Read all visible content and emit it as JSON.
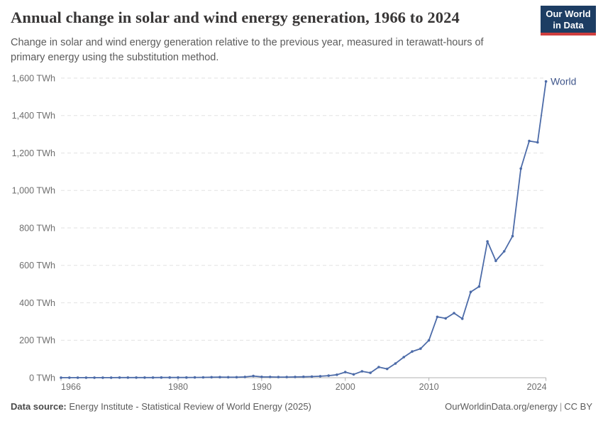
{
  "header": {
    "title": "Annual change in solar and wind energy generation, 1966 to 2024",
    "subtitle": "Change in solar and wind energy generation relative to the previous year, measured in terawatt-hours of primary energy using the substitution method.",
    "logo": {
      "line1": "Our World",
      "line2": "in Data"
    }
  },
  "footer": {
    "data_source_label": "Data source:",
    "data_source_value": " Energy Institute - Statistical Review of World Energy (2025)",
    "url": "OurWorldinData.org/energy",
    "divider": "|",
    "license": "CC BY"
  },
  "chart_data": {
    "type": "line",
    "title": "Annual change in solar and wind energy generation, 1966 to 2024",
    "unit": "TWh",
    "grid": "horizontal-dashed",
    "legend_position": "end-of-line-label",
    "xlim": [
      1966,
      2024
    ],
    "ylim": [
      0,
      1600
    ],
    "x": [
      1966,
      1967,
      1968,
      1969,
      1970,
      1971,
      1972,
      1973,
      1974,
      1975,
      1976,
      1977,
      1978,
      1979,
      1980,
      1981,
      1982,
      1983,
      1984,
      1985,
      1986,
      1987,
      1988,
      1989,
      1990,
      1991,
      1992,
      1993,
      1994,
      1995,
      1996,
      1997,
      1998,
      1999,
      2000,
      2001,
      2002,
      2003,
      2004,
      2005,
      2006,
      2007,
      2008,
      2009,
      2010,
      2011,
      2012,
      2013,
      2014,
      2015,
      2016,
      2017,
      2018,
      2019,
      2020,
      2021,
      2022,
      2023,
      2024
    ],
    "series": [
      {
        "name": "World",
        "values": [
          0.3,
          0.3,
          0.3,
          0.4,
          0.4,
          0.5,
          0.5,
          0.6,
          0.6,
          0.7,
          0.8,
          0.9,
          1,
          1.1,
          1.2,
          1.3,
          1.6,
          2,
          2.5,
          3,
          2.8,
          2.8,
          4,
          9,
          4.5,
          4,
          3.5,
          3.5,
          4,
          5,
          6,
          8,
          11,
          16,
          30,
          18,
          34,
          26,
          57,
          47,
          76,
          110,
          140,
          155,
          200,
          325,
          317,
          345,
          315,
          458,
          487,
          728,
          624,
          675,
          756,
          1117,
          1264,
          1257,
          1582
        ]
      }
    ],
    "y_ticks": [
      {
        "value": 0,
        "label": "0 TWh"
      },
      {
        "value": 200,
        "label": "200 TWh"
      },
      {
        "value": 400,
        "label": "400 TWh"
      },
      {
        "value": 600,
        "label": "600 TWh"
      },
      {
        "value": 800,
        "label": "800 TWh"
      },
      {
        "value": 1000,
        "label": "1,000 TWh"
      },
      {
        "value": 1200,
        "label": "1,200 TWh"
      },
      {
        "value": 1400,
        "label": "1,400 TWh"
      },
      {
        "value": 1600,
        "label": "1,600 TWh"
      }
    ],
    "x_ticks": [
      {
        "value": 1966,
        "label": "1966"
      },
      {
        "value": 1980,
        "label": "1980"
      },
      {
        "value": 1990,
        "label": "1990"
      },
      {
        "value": 2000,
        "label": "2000"
      },
      {
        "value": 2010,
        "label": "2010"
      },
      {
        "value": 2024,
        "label": "2024"
      }
    ],
    "colors": {
      "line": "#4c6ba8",
      "entity_label": "#41578c",
      "grid": "#e2e2e2",
      "axis": "#b0b0b0",
      "tick_text": "#6e6e6e"
    }
  }
}
